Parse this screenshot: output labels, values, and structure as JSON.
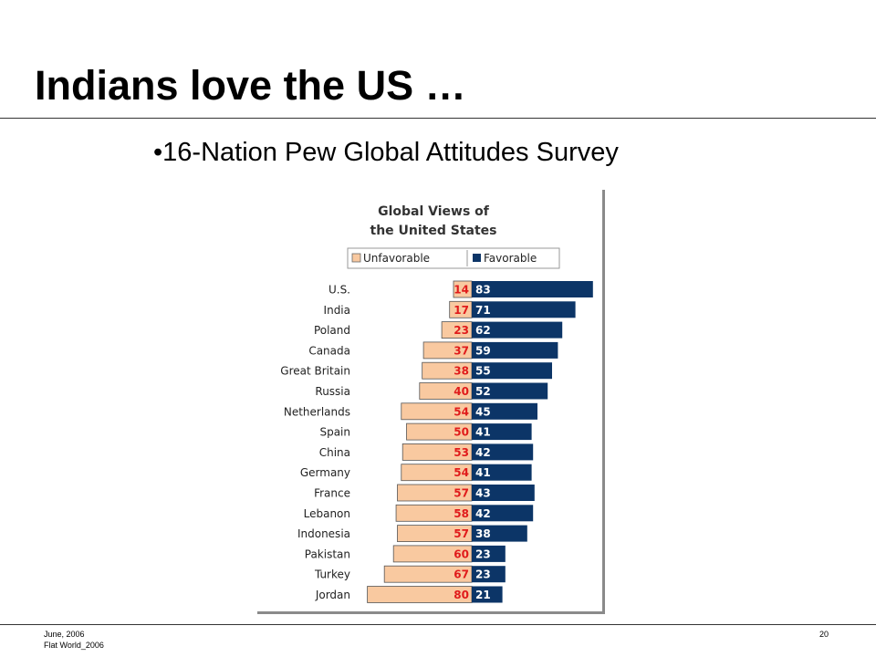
{
  "slide": {
    "title": "Indians love the US …",
    "bullet": "•16-Nation Pew Global Attitudes Survey"
  },
  "footer": {
    "date": "June, 2006",
    "source": "Flat World_2006",
    "page_number": "20"
  },
  "chart_data": {
    "type": "bar",
    "orientation": "horizontal-diverging",
    "title_lines": [
      "Global Views of",
      "the United States"
    ],
    "legend_position": "top",
    "categories": [
      "U.S.",
      "India",
      "Poland",
      "Canada",
      "Great Britain",
      "Russia",
      "Netherlands",
      "Spain",
      "China",
      "Germany",
      "France",
      "Lebanon",
      "Indonesia",
      "Pakistan",
      "Turkey",
      "Jordan"
    ],
    "series": [
      {
        "name": "Unfavorable",
        "color": "#f9c9a0",
        "label_color": "#e01b1b",
        "values": [
          14,
          17,
          23,
          37,
          38,
          40,
          54,
          50,
          53,
          54,
          57,
          58,
          57,
          60,
          67,
          80
        ]
      },
      {
        "name": "Favorable",
        "color": "#0c3567",
        "label_color": "#ffffff",
        "values": [
          83,
          71,
          62,
          59,
          55,
          52,
          45,
          41,
          42,
          41,
          43,
          42,
          38,
          23,
          23,
          21
        ]
      }
    ]
  }
}
